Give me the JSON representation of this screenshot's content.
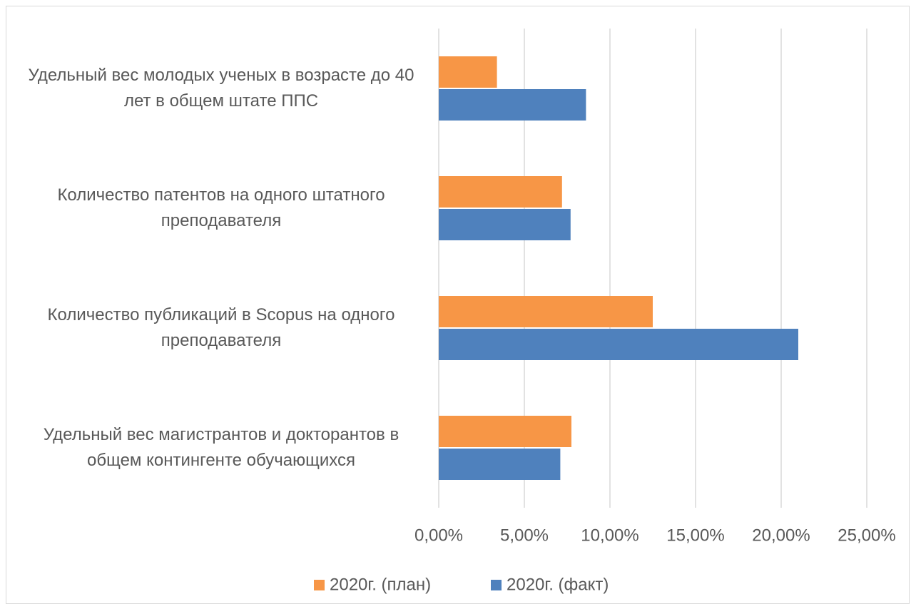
{
  "chart_data": {
    "type": "hbar",
    "categories": [
      "Удельный вес молодых ученых в возрасте до 40 лет в общем штате ППС",
      "Количество патентов на одного штатного преподавателя",
      "Количество публикаций в Scopus на одного преподавателя",
      "Удельный вес магистрантов и докторантов в общем контингенте обучающихся"
    ],
    "series": [
      {
        "name": "2020г. (план)",
        "color": "#f79646",
        "values": [
          3.4,
          7.2,
          12.5,
          7.75
        ]
      },
      {
        "name": "2020г. (факт)",
        "color": "#4f81bd",
        "values": [
          8.6,
          7.7,
          21.0,
          7.1
        ]
      }
    ],
    "xlim": [
      0,
      25
    ],
    "xticks": [
      {
        "value": 0,
        "label": "0,00%"
      },
      {
        "value": 5,
        "label": "5,00%"
      },
      {
        "value": 10,
        "label": "10,00%"
      },
      {
        "value": 15,
        "label": "15,00%"
      },
      {
        "value": 20,
        "label": "20,00%"
      },
      {
        "value": 25,
        "label": "25,00%"
      }
    ],
    "grid": true,
    "legend": "bottom"
  }
}
